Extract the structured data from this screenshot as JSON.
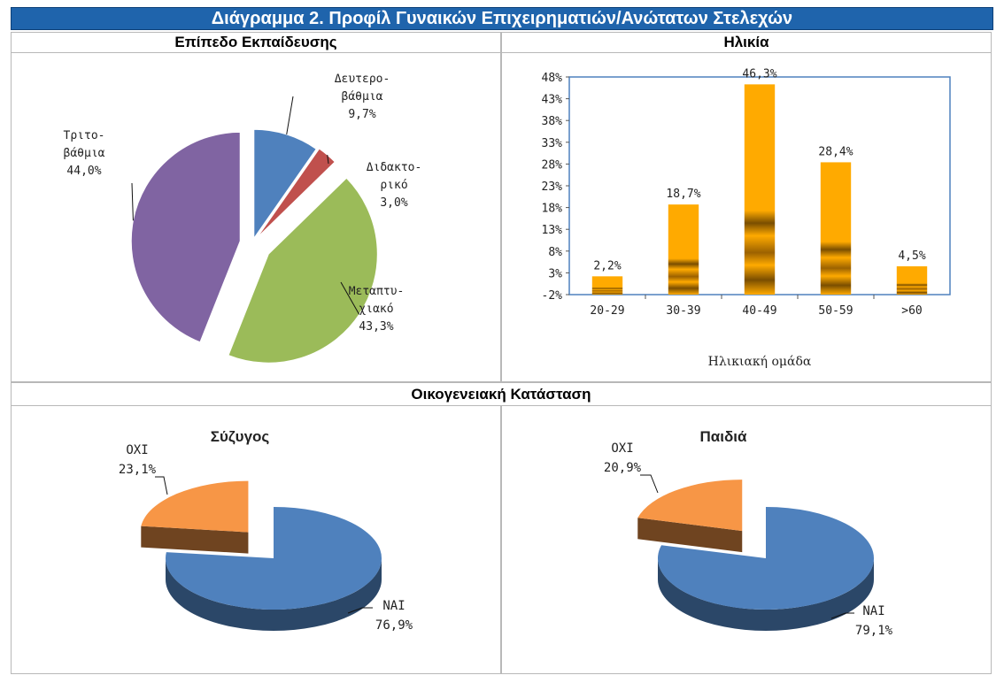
{
  "title": "Διάγραμμα 2. Προφίλ Γυναικών Επιχειρηματιών/Ανώτατων Στελεχών",
  "panels": {
    "education": "Επίπεδο Εκπαίδευσης",
    "age": "Ηλικία",
    "family": "Οικογενειακή Κατάσταση"
  },
  "chart_data": [
    {
      "type": "pie",
      "title": "Επίπεδο Εκπαίδευσης",
      "slices": [
        {
          "label": [
            "Δευτερο-",
            "βάθμια"
          ],
          "value_label": "9,7%",
          "value": 9.7,
          "color": "#4f81bd"
        },
        {
          "label": [
            "Διδακτο-",
            "ρικό"
          ],
          "value_label": "3,0%",
          "value": 3.0,
          "color": "#c0504d"
        },
        {
          "label": [
            "Μεταπτυ-",
            "χιακό"
          ],
          "value_label": "43,3%",
          "value": 43.3,
          "color": "#9bbb59"
        },
        {
          "label": [
            "Τριτο-",
            "βάθμια"
          ],
          "value_label": "44,0%",
          "value": 44.0,
          "color": "#8064a2"
        }
      ]
    },
    {
      "type": "bar",
      "title": "Ηλικία",
      "xlabel": "Ηλικιακή ομάδα",
      "categories": [
        "20-29",
        "30-39",
        "40-49",
        "50-59",
        ">60"
      ],
      "values": [
        2.2,
        18.7,
        46.3,
        28.4,
        4.5
      ],
      "value_labels": [
        "2,2%",
        "18,7%",
        "46,3%",
        "28,4%",
        "4,5%"
      ],
      "ylim": [
        -2,
        48
      ],
      "yticks": [
        "48%",
        "43%",
        "38%",
        "33%",
        "28%",
        "23%",
        "18%",
        "13%",
        "8%",
        "3%",
        "-2%"
      ],
      "bar_color": "#ffaa00"
    },
    {
      "type": "pie",
      "title": "Σύζυγος",
      "slices": [
        {
          "label": "ΝΑΙ",
          "value_label": "76,9%",
          "value": 76.9,
          "color": "#4f81bd"
        },
        {
          "label": "ΟΧΙ",
          "value_label": "23,1%",
          "value": 23.1,
          "color": "#f79646"
        }
      ]
    },
    {
      "type": "pie",
      "title": "Παιδιά",
      "slices": [
        {
          "label": "ΝΑΙ",
          "value_label": "79,1%",
          "value": 79.1,
          "color": "#4f81bd"
        },
        {
          "label": "ΟΧΙ",
          "value_label": "20,9%",
          "value": 20.9,
          "color": "#f79646"
        }
      ]
    }
  ]
}
